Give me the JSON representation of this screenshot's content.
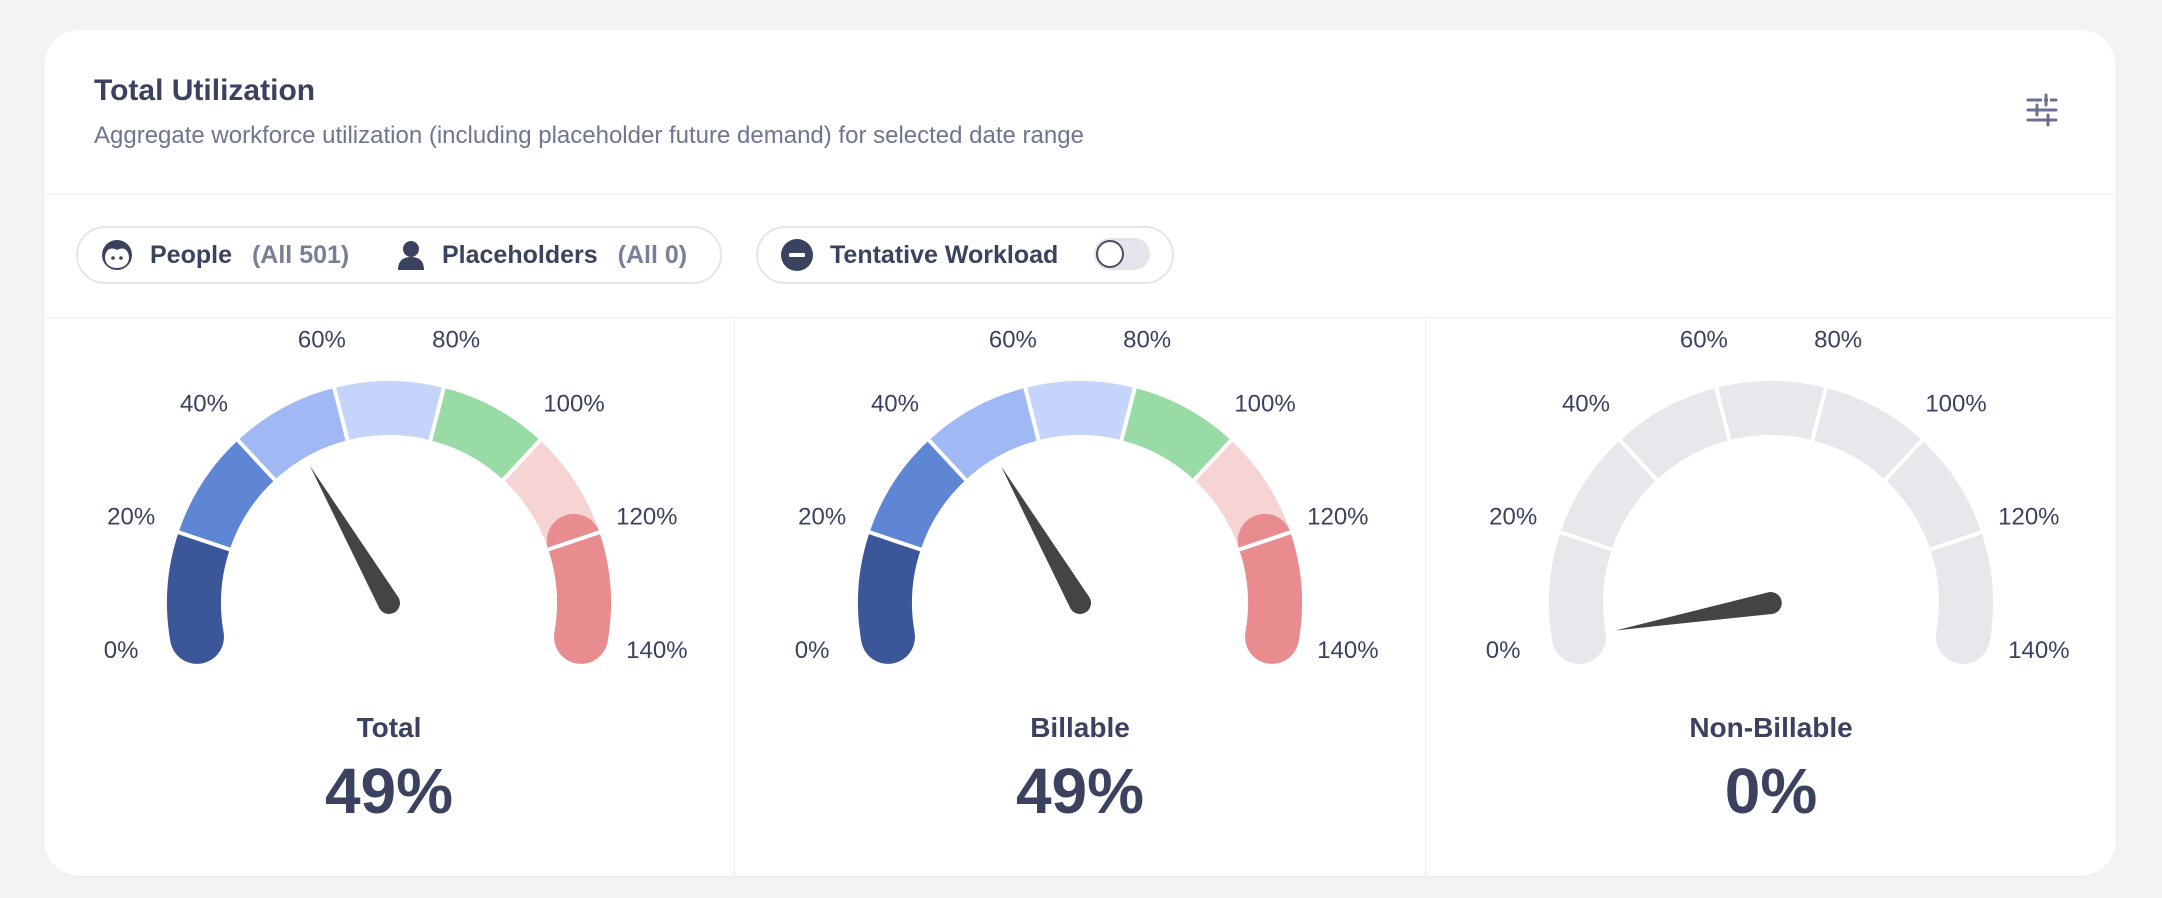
{
  "header": {
    "title": "Total Utilization",
    "subtitle": "Aggregate workforce utilization (including placeholder future demand) for selected date range",
    "settings_icon": "sliders-icon"
  },
  "filters": {
    "people_label": "People",
    "people_count": "(All 501)",
    "placeholders_label": "Placeholders",
    "placeholders_count": "(All 0)",
    "tentative_label": "Tentative Workload",
    "tentative_enabled": false
  },
  "colors": {
    "segments": [
      "#3b5699",
      "#5f86d4",
      "#a0b8f4",
      "#c5d4fa",
      "#99dba4",
      "#f7d4d4",
      "#e88c90"
    ],
    "inactive": "#e7e8ec",
    "needle": "#444444"
  },
  "gauge_scale": {
    "min": 0,
    "max": 140,
    "ticks": [
      "0%",
      "20%",
      "40%",
      "60%",
      "80%",
      "100%",
      "120%",
      "140%"
    ]
  },
  "gauges": [
    {
      "name": "Total",
      "value_label": "49%",
      "value": 49,
      "active": true
    },
    {
      "name": "Billable",
      "value_label": "49%",
      "value": 49,
      "active": true
    },
    {
      "name": "Non-Billable",
      "value_label": "0%",
      "value": 0,
      "active": false
    }
  ]
}
